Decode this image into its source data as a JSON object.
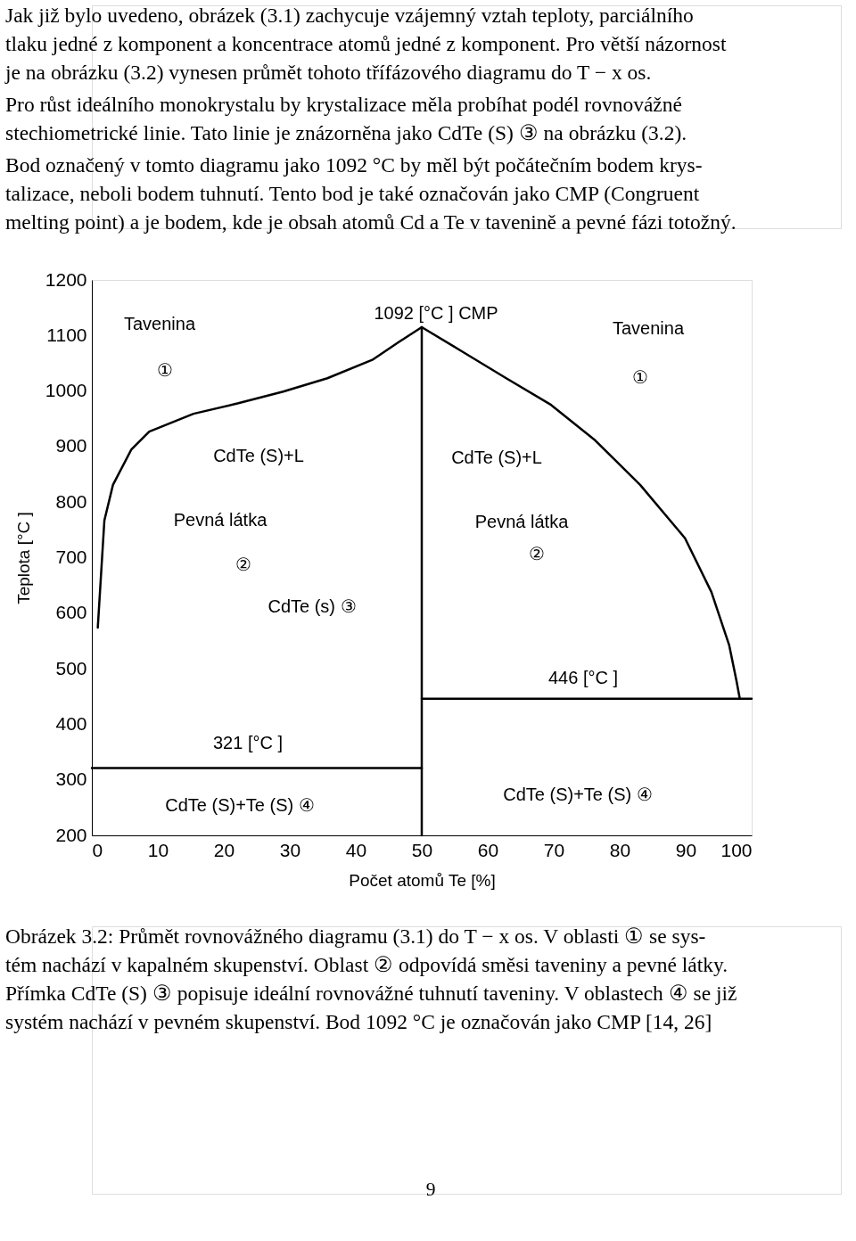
{
  "chart_data": {
    "type": "line",
    "xlabel": "Počet atomů Te [%]",
    "ylabel": "Teplota  [°C ]",
    "xlim": [
      0,
      100
    ],
    "ylim": [
      200,
      1200
    ],
    "xticks": [
      0,
      10,
      20,
      30,
      40,
      50,
      60,
      70,
      80,
      90,
      100
    ],
    "yticks": [
      200,
      300,
      400,
      500,
      600,
      700,
      800,
      900,
      1000,
      1100,
      1200
    ],
    "grid": false,
    "marker": "none",
    "line_style": "solid",
    "series": [
      {
        "color": "#000000",
        "x": [
          0.9,
          1.9,
          3.2,
          6,
          8.7,
          15.4,
          22.2,
          29,
          35.7,
          42.5,
          46.5,
          50
        ],
        "values": [
          574,
          767,
          831,
          895,
          927,
          959,
          978,
          999,
          1023,
          1056,
          1088,
          1115
        ]
      },
      {
        "color": "#000000",
        "x": [
          50,
          56,
          62.8,
          69.6,
          76.3,
          83.1,
          89.9,
          93.9,
          96.6,
          97.7,
          98.2
        ],
        "values": [
          1115,
          1072,
          1023,
          975,
          911,
          831,
          735,
          638,
          542,
          478,
          446
        ]
      },
      {
        "color": "#000000",
        "x": [
          50,
          50
        ],
        "values": [
          200,
          1115
        ]
      },
      {
        "color": "#000000",
        "x": [
          0,
          50
        ],
        "values": [
          321,
          321
        ]
      },
      {
        "color": "#000000",
        "x": [
          50,
          100
        ],
        "values": [
          446,
          446
        ]
      }
    ],
    "annotations": [
      "Jak již bylo uvedeno, obrázek (3.1) zachycuje vzájemný vztah teploty, parciálního\ntlaku jedné z komponent a koncentrace atomů jedné z komponent. Pro větší názornost\nje na obrázku (3.2) vynesen průmět tohoto třífázového diagramu do T − x os.",
      "Pro růst ideálního monokrystalu by krystalizace měla probíhat podél rovnovážné\nstechiometrické linie. Tato linie je znázorněna jako CdTe (S) ③ na obrázku (3.2).",
      "Bod označený v tomto diagramu jako 1092 °C by měl být počátečním bodem krys-\ntalizace, neboli bodem tuhnutí. Tento bod je také označován jako CMP (Congruent\nmelting point) a je bodem, kde je obsah atomů Cd a Te v tavenině a pevné fázi totožný.",
      "Tavenina",
      "①",
      "1092 [°C ] CMP",
      "Tavenina",
      "①",
      "CdTe (S)+L",
      "CdTe (S)+L",
      "Pevná látka",
      "Pevná látka",
      "②",
      "②",
      "CdTe (s) ③",
      "446 [°C ]",
      "321 [°C ]",
      "CdTe (S)+Te (S) ④",
      "CdTe (S)+Te (S) ④",
      "Obrázek 3.2: Průmět rovnovážného diagramu (3.1) do T − x os. V oblasti ① se sys-\ntém nachází v kapalném skupenství. Oblast ② odpovídá směsi taveniny a pevné látky.\nPřímka CdTe (S) ③ popisuje ideální rovnovážné tuhnutí taveniny. V oblastech ④ se již\nsystém nachází v pevném skupenství. Bod 1092 °C je označován jako CMP [14, 26]",
      "9"
    ]
  }
}
